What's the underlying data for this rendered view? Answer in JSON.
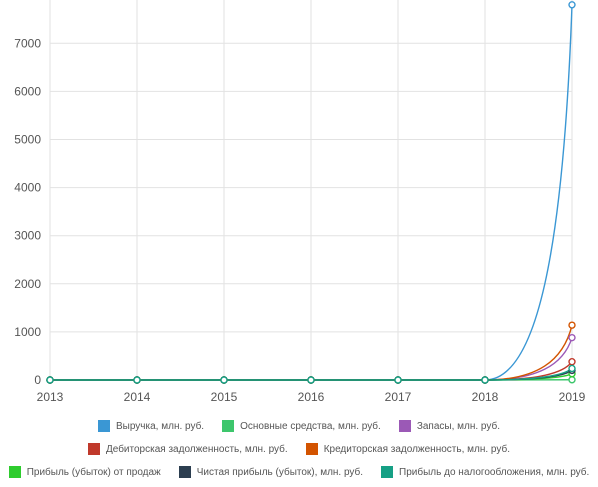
{
  "chart_data": {
    "type": "line",
    "title": "",
    "xlabel": "",
    "ylabel": "",
    "x": [
      "2013",
      "2014",
      "2015",
      "2016",
      "2017",
      "2018",
      "2019"
    ],
    "y_ticks": [
      "0",
      "1000",
      "2000",
      "3000",
      "4000",
      "5000",
      "6000",
      "7000"
    ],
    "ylim": [
      0,
      7900
    ],
    "grid": true,
    "legend_position": "bottom",
    "series": [
      {
        "name": "Выручка, млн. руб.",
        "color": "#3a97d4",
        "values": [
          0,
          0,
          0,
          0,
          0,
          0,
          7800
        ]
      },
      {
        "name": "Основные средства, млн. руб.",
        "color": "#3dc66c",
        "values": [
          0,
          0,
          0,
          0,
          0,
          0,
          5
        ]
      },
      {
        "name": "Запасы, млн. руб.",
        "color": "#9b59b6",
        "values": [
          0,
          0,
          0,
          0,
          0,
          0,
          880
        ]
      },
      {
        "name": "Дебиторская задолженность, млн. руб.",
        "color": "#c0392b",
        "values": [
          0,
          0,
          0,
          0,
          0,
          0,
          380
        ]
      },
      {
        "name": "Кредиторская задолженность, млн. руб.",
        "color": "#d35400",
        "values": [
          0,
          0,
          0,
          0,
          0,
          0,
          1140
        ]
      },
      {
        "name": "Прибыль (убыток) от продаж",
        "color": "#2ecc2e",
        "values": [
          0,
          0,
          0,
          0,
          0,
          0,
          130
        ]
      },
      {
        "name": "Чистая прибыль (убыток), млн. руб.",
        "color": "#2c3e50",
        "values": [
          0,
          0,
          0,
          0,
          0,
          0,
          200
        ]
      },
      {
        "name": "Прибыль до налогообложения, млн. руб.",
        "color": "#16a085",
        "values": [
          0,
          0,
          0,
          0,
          0,
          0,
          240
        ]
      }
    ]
  }
}
